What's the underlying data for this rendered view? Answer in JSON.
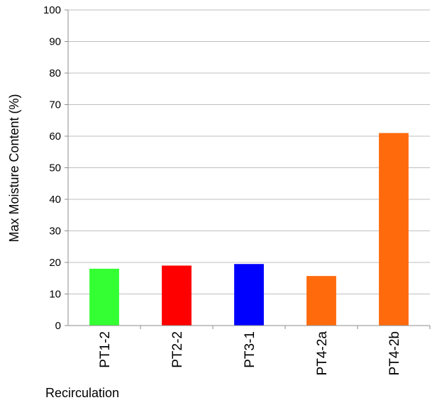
{
  "chart_data": {
    "type": "bar",
    "title": "",
    "xlabel": "Recirculation",
    "ylabel": "Max Moisture Content  (%)",
    "ylim": [
      0,
      100
    ],
    "yticks": [
      0,
      10,
      20,
      30,
      40,
      50,
      60,
      70,
      80,
      90,
      100
    ],
    "grid": true,
    "legend": "none",
    "categories": [
      "PT1-2",
      "PT2-2",
      "PT3-1",
      "PT4-2a",
      "PT4-2b"
    ],
    "values": [
      18,
      19,
      19.5,
      15.7,
      61
    ],
    "colors": [
      "#33ff33",
      "#ff0000",
      "#0000ff",
      "#ff6a0d",
      "#ff6a0d"
    ]
  }
}
